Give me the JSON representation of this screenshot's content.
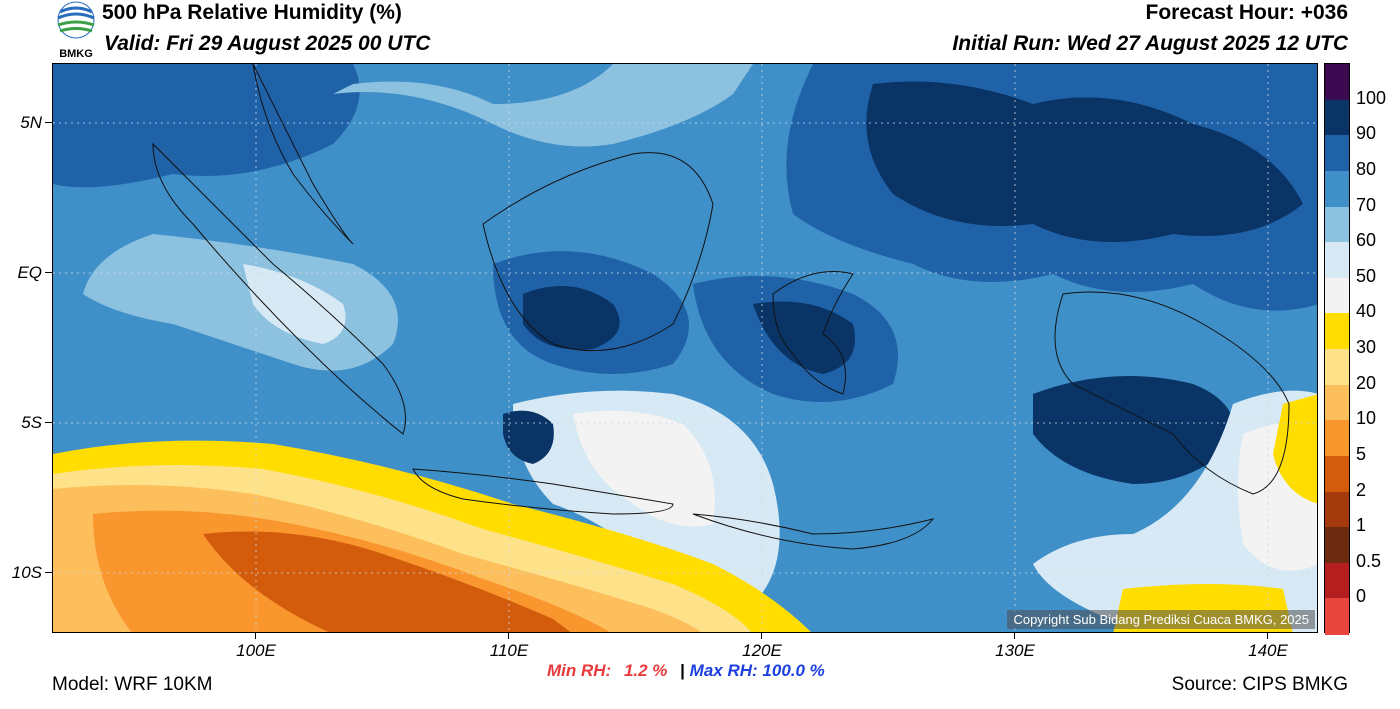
{
  "header": {
    "title": "500 hPa Relative Humidity (%)",
    "valid": "Valid: Fri 29 August 2025 00 UTC",
    "forecast_hour": "Forecast Hour: +036",
    "initial_run": "Initial Run: Wed 27 August 2025 12 UTC",
    "logo_text": "BMKG"
  },
  "axes": {
    "lat_labels": [
      "5N",
      "EQ",
      "5S",
      "10S"
    ],
    "lon_labels": [
      "100E",
      "110E",
      "120E",
      "130E",
      "140E"
    ]
  },
  "colorbar": {
    "labels": [
      "100",
      "90",
      "80",
      "70",
      "60",
      "50",
      "40",
      "30",
      "20",
      "10",
      "5",
      "2",
      "1",
      "0.5",
      "0"
    ],
    "colors": [
      "#3c0a50",
      "#0a3466",
      "#1f62a8",
      "#3f8fc9",
      "#8cc2e0",
      "#d6e9f4",
      "#f3f3f3",
      "#ffdd00",
      "#fde28a",
      "#fdbf5c",
      "#f9962e",
      "#d25c0c",
      "#a33a0c",
      "#6e2a10",
      "#b51e1e",
      "#e8453c"
    ]
  },
  "stats": {
    "min_label": "Min RH:",
    "min_value": "1.2 %",
    "separator": "|",
    "max_label": "Max RH:",
    "max_value": "100.0 %"
  },
  "footer": {
    "model": "Model: WRF 10KM",
    "source": "Source: CIPS BMKG",
    "copyright": "Copyright Sub Bidang Prediksi Cuaca BMKG, 2025"
  }
}
